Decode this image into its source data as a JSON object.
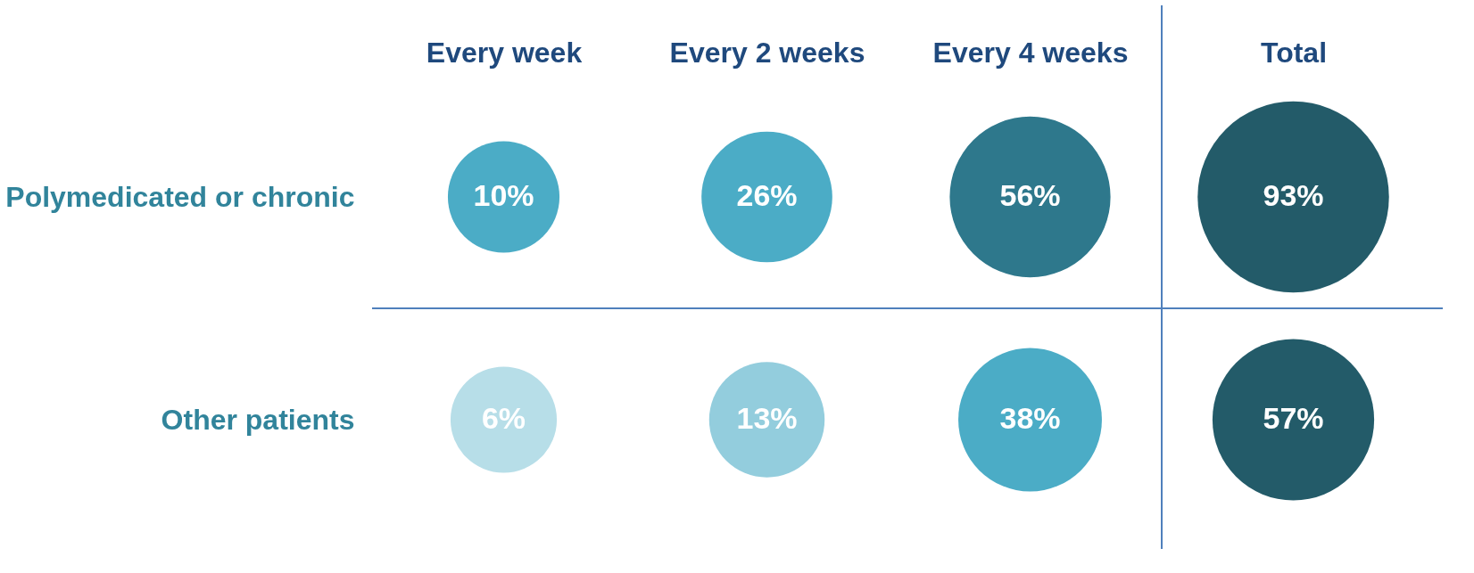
{
  "chart_data": {
    "type": "other",
    "categories": [
      "Every week",
      "Every 2 weeks",
      "Every 4 weeks",
      "Total"
    ],
    "y_categories": [
      "Polymedicated or chronic",
      "Other patients"
    ],
    "series": [
      {
        "values": [
          10,
          26,
          56,
          93
        ],
        "value_labels": [
          "10%",
          "26%",
          "56%",
          "93%"
        ],
        "colors": [
          "#4bacc6",
          "#4bacc6",
          "#2e788c",
          "#235b69"
        ]
      },
      {
        "values": [
          6,
          13,
          38,
          57
        ],
        "value_labels": [
          "6%",
          "13%",
          "38%",
          "57%"
        ],
        "colors": [
          "#b7dee8",
          "#93cddd",
          "#4bacc6",
          "#235b69"
        ]
      }
    ]
  }
}
